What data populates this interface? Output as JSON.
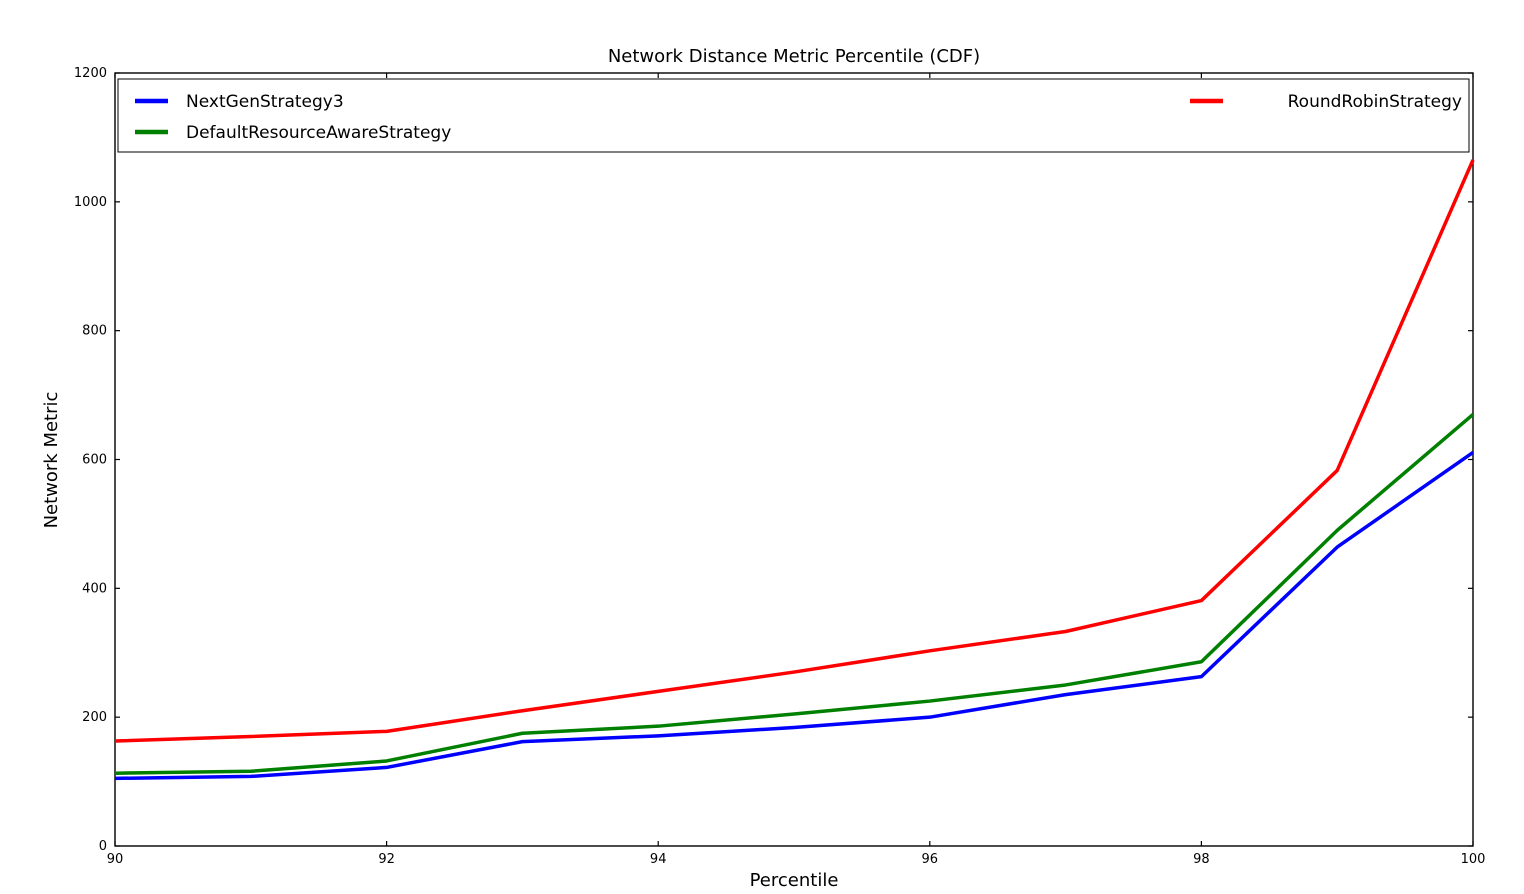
{
  "chart_data": {
    "type": "line",
    "title": "Network Distance Metric Percentile (CDF)",
    "xlabel": "Percentile",
    "ylabel": "Network Metric",
    "xlim": [
      90,
      100
    ],
    "ylim": [
      0,
      1200
    ],
    "xticks": [
      90,
      92,
      94,
      96,
      98,
      100
    ],
    "yticks": [
      0,
      200,
      400,
      600,
      800,
      1000,
      1200
    ],
    "grid": false,
    "x": [
      90,
      91,
      92,
      93,
      94,
      95,
      96,
      97,
      98,
      99,
      100
    ],
    "series": [
      {
        "name": "NextGenStrategy3",
        "color": "#0000ff",
        "values": [
          105,
          108,
          122,
          162,
          171,
          184,
          200,
          235,
          263,
          464,
          611
        ]
      },
      {
        "name": "DefaultResourceAwareStrategy",
        "color": "#008000",
        "values": [
          113,
          116,
          132,
          175,
          186,
          205,
          225,
          250,
          286,
          490,
          670
        ]
      },
      {
        "name": "RoundRobinStrategy",
        "color": "#ff0000",
        "values": [
          163,
          170,
          178,
          210,
          240,
          270,
          303,
          333,
          381,
          583,
          1065
        ]
      }
    ],
    "legend": {
      "position": "top-expand",
      "columns": 2,
      "column_assignment": [
        0,
        0,
        1
      ]
    },
    "colors": {
      "spine": "#000000",
      "background": "#ffffff",
      "legend_border": "#000000"
    }
  }
}
